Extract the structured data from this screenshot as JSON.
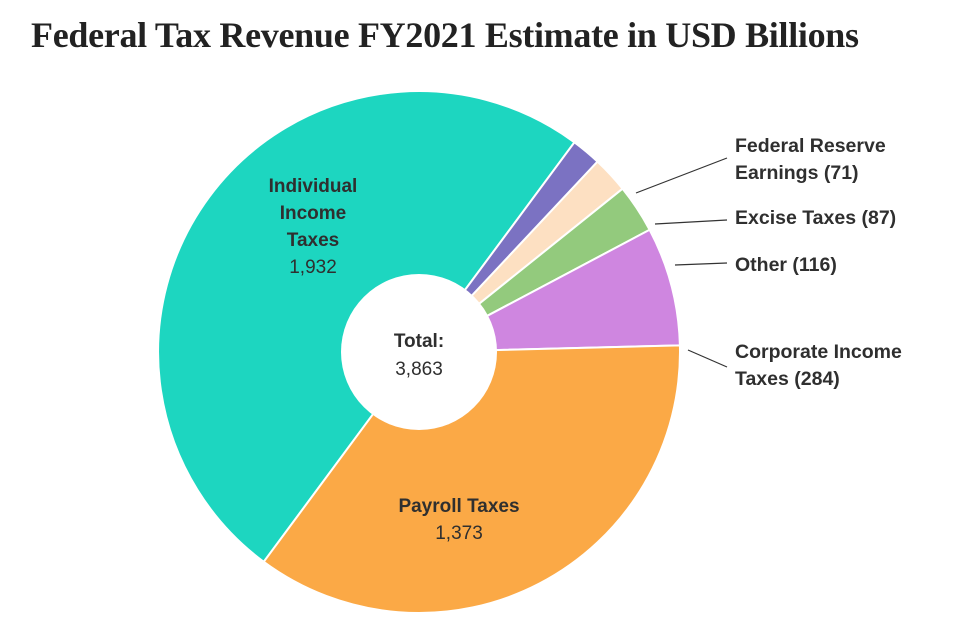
{
  "title": "Federal Tax Revenue FY2021 Estimate in USD Billions",
  "chart_data": {
    "type": "pie",
    "donut": true,
    "title": "Federal Tax Revenue FY2021 Estimate in USD Billions",
    "total": {
      "label": "Total:",
      "value": "3,863"
    },
    "slices": [
      {
        "name": "Individual Income Taxes",
        "value": 1932,
        "value_label": "1,932",
        "color": "#1dd6c0",
        "label_lines": [
          "Individual",
          "Income",
          "Taxes"
        ],
        "label_style": "inside"
      },
      {
        "name": "Federal Reserve Earnings",
        "value": 71,
        "value_label": "71",
        "color": "#7b72c2",
        "label_lines": [
          "Federal Reserve",
          "Earnings (71)"
        ],
        "label_style": "callout"
      },
      {
        "name": "Excise Taxes",
        "value": 87,
        "value_label": "87",
        "color": "#fde0c2",
        "label_lines": [
          "Excise Taxes (87)"
        ],
        "label_style": "callout"
      },
      {
        "name": "Other",
        "value": 116,
        "value_label": "116",
        "color": "#93ca7d",
        "label_lines": [
          "Other (116)"
        ],
        "label_style": "callout"
      },
      {
        "name": "Corporate Income Taxes",
        "value": 284,
        "value_label": "284",
        "color": "#cf86e0",
        "label_lines": [
          "Corporate Income",
          "Taxes (284)"
        ],
        "label_style": "callout"
      },
      {
        "name": "Payroll Taxes",
        "value": 1373,
        "value_label": "1,373",
        "color": "#fba946",
        "label_lines": [
          "Payroll Taxes"
        ],
        "label_style": "inside"
      }
    ]
  }
}
